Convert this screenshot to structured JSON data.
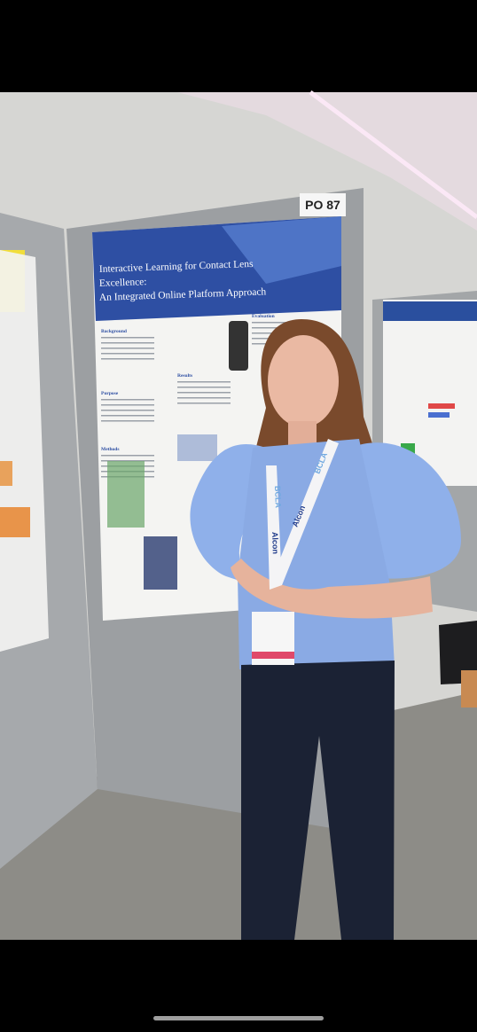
{
  "photo": {
    "poster_number": "PO 87",
    "poster_title_lines": [
      "Interactive Learning for Contact Lens",
      "Excellence:",
      "An Integrated Online Platform Approach"
    ],
    "poster_sections": [
      "Background",
      "Purpose",
      "Methods",
      "Evaluation",
      "Results"
    ],
    "lanyard_texts": [
      "Alcon",
      "BCLA",
      "Alcon",
      "BCLA"
    ]
  }
}
